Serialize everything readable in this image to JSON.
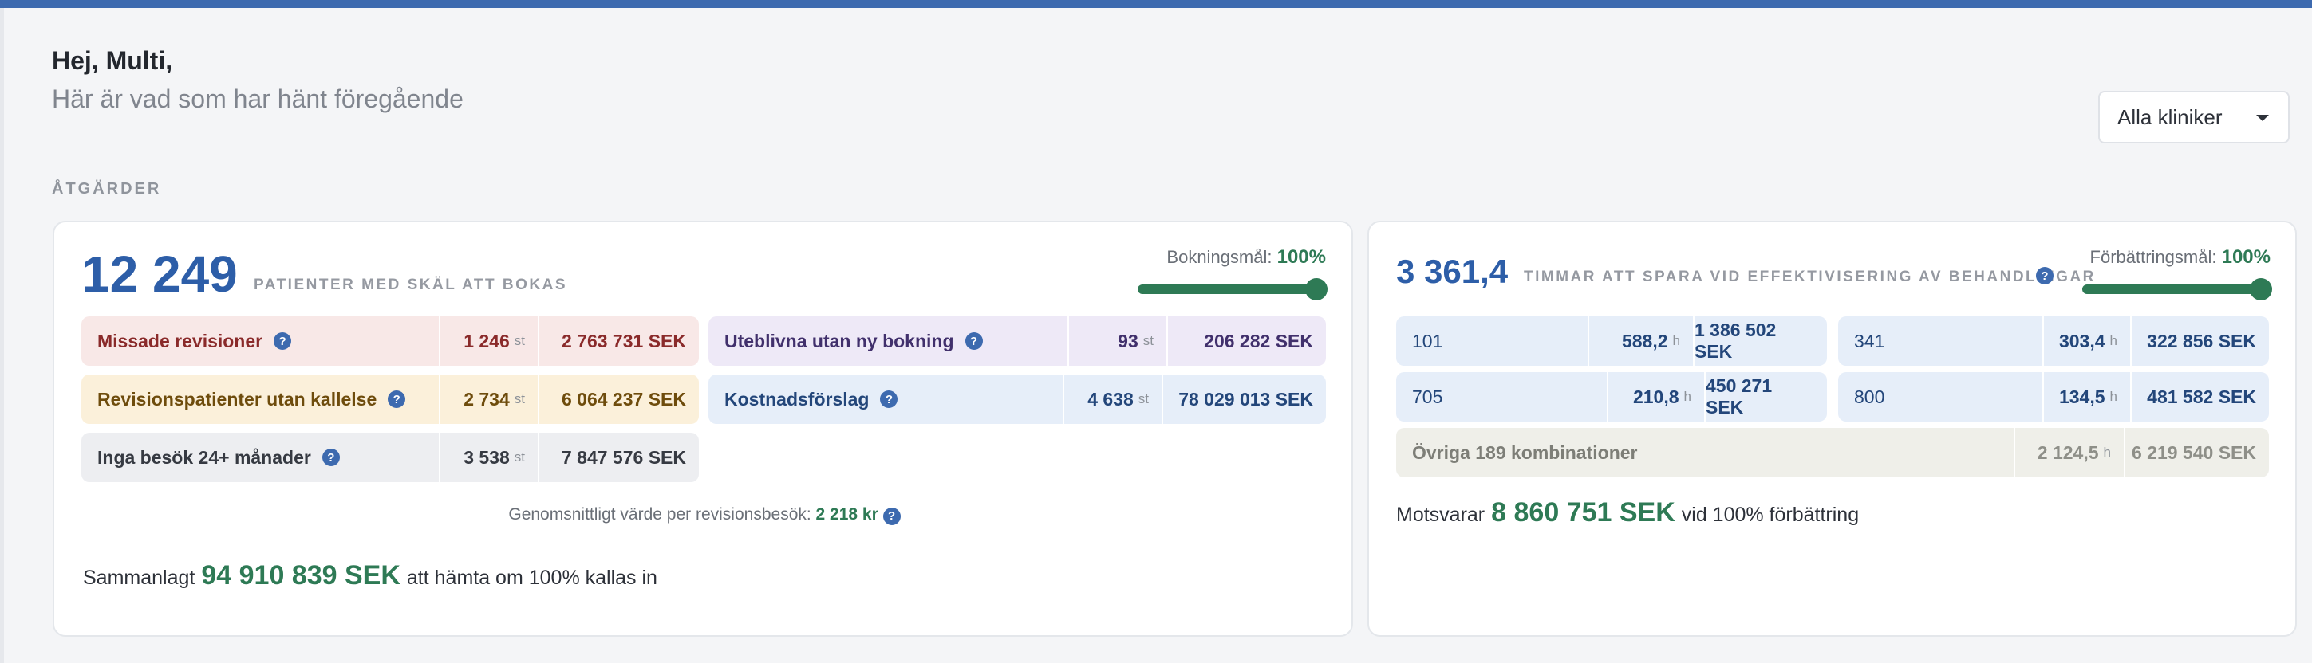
{
  "header": {
    "greeting": "Hej, Multi,",
    "subtitle": "Här är vad som har hänt föregående",
    "clinic_select": {
      "value": "Alla kliniker"
    }
  },
  "section": {
    "title": "ÅTGÄRDER"
  },
  "left_card": {
    "count": "12 249",
    "count_label": "PATIENTER MED SKÄL ATT BOKAS",
    "goal_label": "Bokningsmål:",
    "goal_value": "100%",
    "goal_level": 1.0,
    "rows": [
      {
        "label": "Missade revisioner",
        "count": "1 246",
        "unit": "st",
        "amount": "2 763 731 SEK"
      },
      {
        "label": "Revisionspatienter utan kallelse",
        "count": "2 734",
        "unit": "st",
        "amount": "6 064 237 SEK"
      },
      {
        "label": "Inga besök 24+ månader",
        "count": "3 538",
        "unit": "st",
        "amount": "7 847 576 SEK"
      },
      {
        "label": "Uteblivna utan ny bokning",
        "count": "93",
        "unit": "st",
        "amount": "206 282 SEK"
      },
      {
        "label": "Kostnadsförslag",
        "count": "4 638",
        "unit": "st",
        "amount": "78 029 013 SEK"
      }
    ],
    "average_label": "Genomsnittligt värde per revisionsbesök:",
    "average_value": "2 218 kr",
    "total_prefix": "Sammanlagt",
    "total_amount": "94 910 839 SEK",
    "total_suffix": "att hämta om 100% kallas in"
  },
  "right_card": {
    "hours": "3 361,4",
    "hours_label": "TIMMAR ATT SPARA VID EFFEKTIVISERING AV BEHANDLINGAR",
    "goal_label": "Förbättringsmål:",
    "goal_value": "100%",
    "goal_level": 1.0,
    "rows": [
      {
        "code": "101",
        "hours": "588,2",
        "unit": "h",
        "amount": "1 386 502 SEK"
      },
      {
        "code": "341",
        "hours": "303,4",
        "unit": "h",
        "amount": "322 856 SEK"
      },
      {
        "code": "705",
        "hours": "210,8",
        "unit": "h",
        "amount": "450 271 SEK"
      },
      {
        "code": "800",
        "hours": "134,5",
        "unit": "h",
        "amount": "481 582 SEK"
      }
    ],
    "other": {
      "label": "Övriga 189 kombinationer",
      "hours": "2 124,5",
      "unit": "h",
      "amount": "6 219 540 SEK"
    },
    "equiv_prefix": "Motsvarar",
    "equiv_amount": "8 860 751 SEK",
    "equiv_suffix": "vid 100% förbättring"
  },
  "icons": {
    "help": "?",
    "dropdown": "caret-down"
  },
  "colors": {
    "accent": "#3d6aaf",
    "positive": "#2e7a55",
    "number": "#2d5ea8"
  }
}
